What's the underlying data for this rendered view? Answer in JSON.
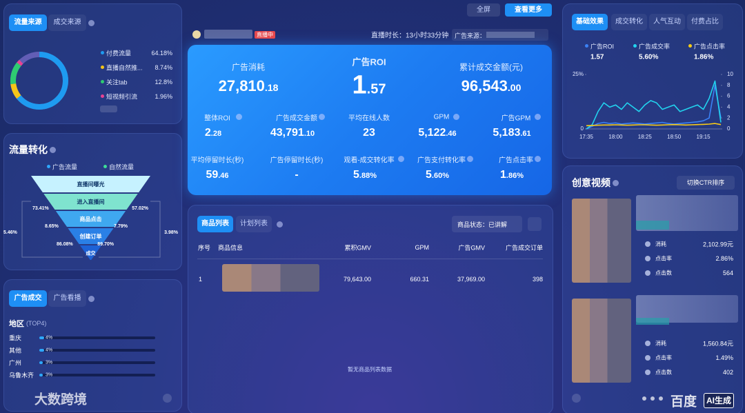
{
  "top_bar": {
    "fullscreen": "全屏",
    "view_more": "查看更多",
    "live_badge": "直播中",
    "live_duration": "直播时长：13小时33分钟",
    "ad_source_label": "广告来源："
  },
  "traffic_source": {
    "tabs": [
      "流量来源",
      "成交来源"
    ],
    "items": [
      {
        "name": "付费流量",
        "value": 64.18,
        "label": "64.18%",
        "color": "#1e9bf0"
      },
      {
        "name": "直播自然推...",
        "value": 8.74,
        "label": "8.74%",
        "color": "#f5c518"
      },
      {
        "name": "关注tab",
        "value": 12.8,
        "label": "12.8%",
        "color": "#2ecc71"
      },
      {
        "name": "短视频引流",
        "value": 1.96,
        "label": "1.96%",
        "color": "#e84393"
      }
    ]
  },
  "funnel": {
    "title": "流量转化",
    "legend": [
      "广告流量",
      "自然流量"
    ],
    "stages": [
      "直播间曝光",
      "进入直播间",
      "商品点击",
      "创建订单",
      "成交"
    ],
    "ad_rates": [
      "73.41%",
      "8.65%",
      "86.08%"
    ],
    "natural_rates": [
      "57.02%",
      "7.79%",
      "89.70%"
    ],
    "ad_total": "5.46%",
    "natural_total": "3.98%"
  },
  "region": {
    "tabs": [
      "广告成交",
      "广告看播"
    ],
    "title": "地区",
    "subtitle": "(TOP4)",
    "items": [
      {
        "name": "重庆",
        "value": 4,
        "label": "4%"
      },
      {
        "name": "其他",
        "value": 4,
        "label": "4%"
      },
      {
        "name": "广州",
        "value": 3,
        "label": "3%"
      },
      {
        "name": "乌鲁木齐",
        "value": 3,
        "label": "3%"
      }
    ]
  },
  "live_kpis": {
    "headline": [
      {
        "label": "广告消耗",
        "value": "27,810.18"
      },
      {
        "label": "广告ROI",
        "value": "1.57"
      },
      {
        "label": "累计成交金额(元)",
        "value": "96,543.00"
      }
    ],
    "metrics": [
      {
        "label": "整体ROI",
        "value": "2.28"
      },
      {
        "label": "广告成交金额",
        "value": "43,791.10"
      },
      {
        "label": "平均在线人数",
        "value": "23"
      },
      {
        "label": "GPM",
        "value": "5,122.46"
      },
      {
        "label": "广告GPM",
        "value": "5,183.61"
      },
      {
        "label": "平均停留时长(秒)",
        "value": "59.46"
      },
      {
        "label": "广告停留时长(秒)",
        "value": "-"
      },
      {
        "label": "观看-成交转化率",
        "value": "5.88%"
      },
      {
        "label": "广告支付转化率",
        "value": "5.60%"
      },
      {
        "label": "广告点击率",
        "value": "1.86%"
      }
    ]
  },
  "product_list": {
    "tabs": [
      "商品列表",
      "计划列表"
    ],
    "status_filter": "商品状态：已讲解",
    "columns": [
      "序号",
      "商品信息",
      "累积GMV",
      "GPM",
      "广告GMV",
      "广告成交订单"
    ],
    "rows": [
      {
        "index": "1",
        "cumulative_gmv": "79,643.00",
        "gpm": "660.31",
        "ad_gmv": "37,969.00",
        "ad_orders": "398"
      }
    ],
    "empty_note": "暂无商品列表数据"
  },
  "performance": {
    "tabs": [
      "基础效果",
      "成交转化",
      "人气互动",
      "付费占比"
    ]
  },
  "chart_data": {
    "type": "line",
    "categories": [
      "17:35",
      null,
      null,
      null,
      null,
      "18:00",
      null,
      null,
      null,
      null,
      "18:25",
      null,
      null,
      null,
      null,
      "18:50",
      null,
      null,
      null,
      null,
      "19:15",
      null,
      null,
      null
    ],
    "ylim": [
      0,
      25
    ],
    "yticks": [
      0,
      {
        "value": 25,
        "label": "25%"
      }
    ],
    "y2lim": [
      0,
      10
    ],
    "y2ticks": [
      0,
      2,
      4,
      6,
      8,
      10
    ],
    "series": [
      {
        "name": "广告ROI",
        "latest": "1.57",
        "color": "#3b82f6",
        "axis": "y2",
        "values": [
          0,
          0.5,
          1,
          1.2,
          1,
          1.1,
          0.9,
          1,
          1.1,
          1,
          0.9,
          1,
          1.1,
          1.2,
          1,
          0.9,
          1,
          1.1,
          1.2,
          1.3,
          1.5,
          2,
          8,
          2
        ]
      },
      {
        "name": "广告成交率",
        "latest": "5.60%",
        "color": "#22d3ee",
        "values": [
          0,
          2,
          8,
          12,
          10,
          11,
          9,
          12,
          10,
          8,
          11,
          13,
          12,
          9,
          10,
          11,
          8,
          9,
          10,
          11,
          9,
          14,
          22,
          3
        ]
      },
      {
        "name": "广告点击率",
        "latest": "1.86%",
        "color": "#facc15",
        "values": [
          1.5,
          1.6,
          1.7,
          1.8,
          1.8,
          1.9,
          1.8,
          1.7,
          1.8,
          1.9,
          1.9,
          1.8,
          1.7,
          1.8,
          1.9,
          2,
          1.9,
          1.8,
          1.9,
          2,
          2.1,
          2.2,
          2.5,
          2
        ]
      }
    ]
  },
  "creatives": {
    "title": "创意视频",
    "sort_button": "切换CTR排序",
    "cards": [
      {
        "spend_label": "消耗",
        "spend": "2,102.99元",
        "ctr_label": "点击率",
        "ctr": "2.86%",
        "clicks_label": "点击数",
        "clicks": "564"
      },
      {
        "spend_label": "消耗",
        "spend": "1,560.84元",
        "ctr_label": "点击率",
        "ctr": "1.49%",
        "clicks_label": "点击数",
        "clicks": "402"
      }
    ]
  },
  "watermarks": [
    "大数跨境",
    "百度",
    "AI生成"
  ]
}
